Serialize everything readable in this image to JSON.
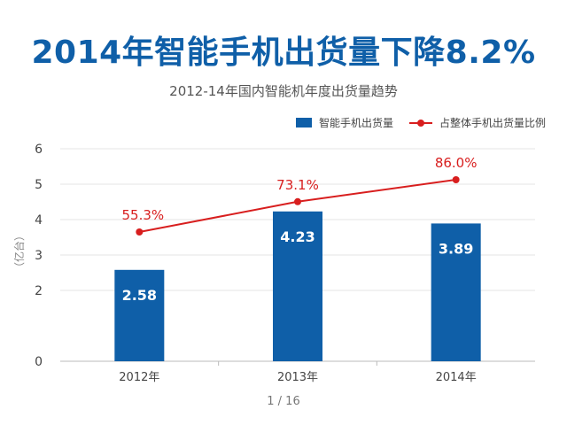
{
  "colors": {
    "title": "#0f5fa8",
    "bar": "#0f5fa8",
    "line": "#d81e1e",
    "grid": "#e6e6e6",
    "axis": "#bbbbbb"
  },
  "pager": {
    "text": "1 / 16"
  },
  "chart_data": {
    "type": "bar",
    "title": "2014年智能手机出货量下降8.2%",
    "subtitle": "2012-14年国内智能机年度出货量趋势",
    "xlabel": "",
    "ylabel": "（亿台）",
    "ylim": [
      0,
      6
    ],
    "yticks": [
      "0",
      "2",
      "3",
      "4",
      "5",
      "6"
    ],
    "categories": [
      "2012年",
      "2013年",
      "2014年"
    ],
    "series": [
      {
        "name": "智能手机出货量",
        "kind": "bar",
        "values": [
          2.58,
          4.23,
          3.89
        ],
        "labels": [
          "2.58",
          "4.23",
          "3.89"
        ]
      },
      {
        "name": "占整体手机出货量比例",
        "kind": "line",
        "values": [
          55.3,
          73.1,
          86.0
        ],
        "labels": [
          "55.3%",
          "73.1%",
          "86.0%"
        ]
      }
    ],
    "legend_position": "top-right",
    "grid": true
  }
}
